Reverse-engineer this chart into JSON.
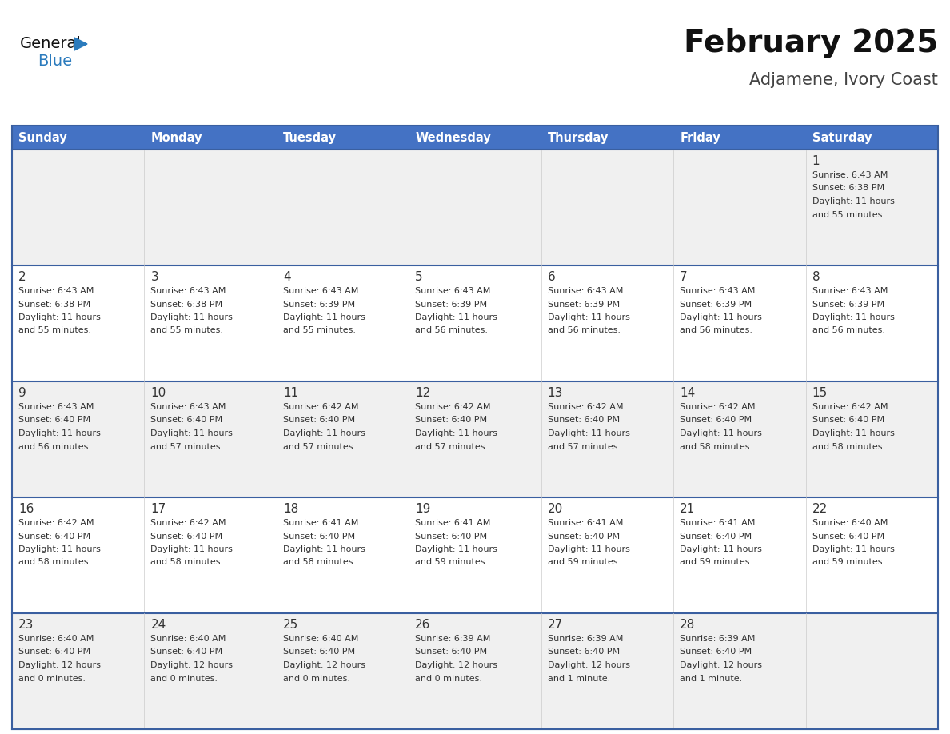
{
  "title": "February 2025",
  "subtitle": "Adjamene, Ivory Coast",
  "header_bg": "#4472C4",
  "header_text_color": "#FFFFFF",
  "days_of_week": [
    "Sunday",
    "Monday",
    "Tuesday",
    "Wednesday",
    "Thursday",
    "Friday",
    "Saturday"
  ],
  "row_bg_odd": "#F0F0F0",
  "row_bg_even": "#FFFFFF",
  "cell_border_color": "#3A5FA0",
  "cell_divider_color": "#CCCCCC",
  "text_color": "#333333",
  "day_num_color": "#333333",
  "title_color": "#111111",
  "subtitle_color": "#444444",
  "logo_general_color": "#111111",
  "logo_blue_color": "#2B7BBD",
  "logo_triangle_color": "#2B7BBD",
  "calendar_data": [
    [
      null,
      null,
      null,
      null,
      null,
      null,
      {
        "day": 1,
        "sunrise": "6:43 AM",
        "sunset": "6:38 PM",
        "daylight_line1": "Daylight: 11 hours",
        "daylight_line2": "and 55 minutes."
      }
    ],
    [
      {
        "day": 2,
        "sunrise": "6:43 AM",
        "sunset": "6:38 PM",
        "daylight_line1": "Daylight: 11 hours",
        "daylight_line2": "and 55 minutes."
      },
      {
        "day": 3,
        "sunrise": "6:43 AM",
        "sunset": "6:38 PM",
        "daylight_line1": "Daylight: 11 hours",
        "daylight_line2": "and 55 minutes."
      },
      {
        "day": 4,
        "sunrise": "6:43 AM",
        "sunset": "6:39 PM",
        "daylight_line1": "Daylight: 11 hours",
        "daylight_line2": "and 55 minutes."
      },
      {
        "day": 5,
        "sunrise": "6:43 AM",
        "sunset": "6:39 PM",
        "daylight_line1": "Daylight: 11 hours",
        "daylight_line2": "and 56 minutes."
      },
      {
        "day": 6,
        "sunrise": "6:43 AM",
        "sunset": "6:39 PM",
        "daylight_line1": "Daylight: 11 hours",
        "daylight_line2": "and 56 minutes."
      },
      {
        "day": 7,
        "sunrise": "6:43 AM",
        "sunset": "6:39 PM",
        "daylight_line1": "Daylight: 11 hours",
        "daylight_line2": "and 56 minutes."
      },
      {
        "day": 8,
        "sunrise": "6:43 AM",
        "sunset": "6:39 PM",
        "daylight_line1": "Daylight: 11 hours",
        "daylight_line2": "and 56 minutes."
      }
    ],
    [
      {
        "day": 9,
        "sunrise": "6:43 AM",
        "sunset": "6:40 PM",
        "daylight_line1": "Daylight: 11 hours",
        "daylight_line2": "and 56 minutes."
      },
      {
        "day": 10,
        "sunrise": "6:43 AM",
        "sunset": "6:40 PM",
        "daylight_line1": "Daylight: 11 hours",
        "daylight_line2": "and 57 minutes."
      },
      {
        "day": 11,
        "sunrise": "6:42 AM",
        "sunset": "6:40 PM",
        "daylight_line1": "Daylight: 11 hours",
        "daylight_line2": "and 57 minutes."
      },
      {
        "day": 12,
        "sunrise": "6:42 AM",
        "sunset": "6:40 PM",
        "daylight_line1": "Daylight: 11 hours",
        "daylight_line2": "and 57 minutes."
      },
      {
        "day": 13,
        "sunrise": "6:42 AM",
        "sunset": "6:40 PM",
        "daylight_line1": "Daylight: 11 hours",
        "daylight_line2": "and 57 minutes."
      },
      {
        "day": 14,
        "sunrise": "6:42 AM",
        "sunset": "6:40 PM",
        "daylight_line1": "Daylight: 11 hours",
        "daylight_line2": "and 58 minutes."
      },
      {
        "day": 15,
        "sunrise": "6:42 AM",
        "sunset": "6:40 PM",
        "daylight_line1": "Daylight: 11 hours",
        "daylight_line2": "and 58 minutes."
      }
    ],
    [
      {
        "day": 16,
        "sunrise": "6:42 AM",
        "sunset": "6:40 PM",
        "daylight_line1": "Daylight: 11 hours",
        "daylight_line2": "and 58 minutes."
      },
      {
        "day": 17,
        "sunrise": "6:42 AM",
        "sunset": "6:40 PM",
        "daylight_line1": "Daylight: 11 hours",
        "daylight_line2": "and 58 minutes."
      },
      {
        "day": 18,
        "sunrise": "6:41 AM",
        "sunset": "6:40 PM",
        "daylight_line1": "Daylight: 11 hours",
        "daylight_line2": "and 58 minutes."
      },
      {
        "day": 19,
        "sunrise": "6:41 AM",
        "sunset": "6:40 PM",
        "daylight_line1": "Daylight: 11 hours",
        "daylight_line2": "and 59 minutes."
      },
      {
        "day": 20,
        "sunrise": "6:41 AM",
        "sunset": "6:40 PM",
        "daylight_line1": "Daylight: 11 hours",
        "daylight_line2": "and 59 minutes."
      },
      {
        "day": 21,
        "sunrise": "6:41 AM",
        "sunset": "6:40 PM",
        "daylight_line1": "Daylight: 11 hours",
        "daylight_line2": "and 59 minutes."
      },
      {
        "day": 22,
        "sunrise": "6:40 AM",
        "sunset": "6:40 PM",
        "daylight_line1": "Daylight: 11 hours",
        "daylight_line2": "and 59 minutes."
      }
    ],
    [
      {
        "day": 23,
        "sunrise": "6:40 AM",
        "sunset": "6:40 PM",
        "daylight_line1": "Daylight: 12 hours",
        "daylight_line2": "and 0 minutes."
      },
      {
        "day": 24,
        "sunrise": "6:40 AM",
        "sunset": "6:40 PM",
        "daylight_line1": "Daylight: 12 hours",
        "daylight_line2": "and 0 minutes."
      },
      {
        "day": 25,
        "sunrise": "6:40 AM",
        "sunset": "6:40 PM",
        "daylight_line1": "Daylight: 12 hours",
        "daylight_line2": "and 0 minutes."
      },
      {
        "day": 26,
        "sunrise": "6:39 AM",
        "sunset": "6:40 PM",
        "daylight_line1": "Daylight: 12 hours",
        "daylight_line2": "and 0 minutes."
      },
      {
        "day": 27,
        "sunrise": "6:39 AM",
        "sunset": "6:40 PM",
        "daylight_line1": "Daylight: 12 hours",
        "daylight_line2": "and 1 minute."
      },
      {
        "day": 28,
        "sunrise": "6:39 AM",
        "sunset": "6:40 PM",
        "daylight_line1": "Daylight: 12 hours",
        "daylight_line2": "and 1 minute."
      },
      null
    ]
  ]
}
